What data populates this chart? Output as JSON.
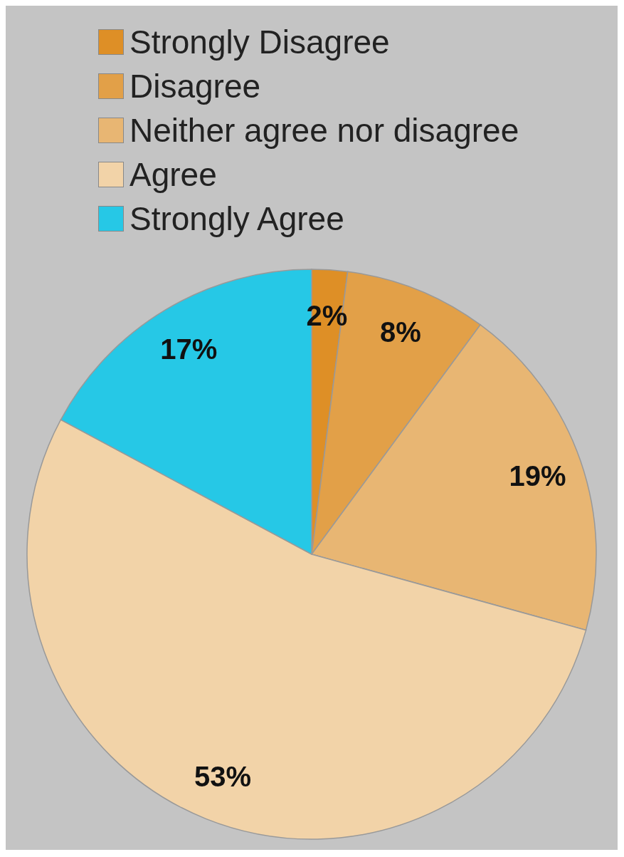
{
  "chart_data": {
    "type": "pie",
    "categories": [
      "Strongly Disagree",
      "Disagree",
      "Neither agree nor disagree",
      "Agree",
      "Strongly Agree"
    ],
    "values": [
      2,
      8,
      19,
      53,
      17
    ],
    "value_labels": [
      "2%",
      "8%",
      "19%",
      "53%",
      "17%"
    ],
    "colors": [
      "#de8f26",
      "#e2a048",
      "#e8b673",
      "#f2d3a8",
      "#26c8e6"
    ],
    "legend": "top"
  }
}
